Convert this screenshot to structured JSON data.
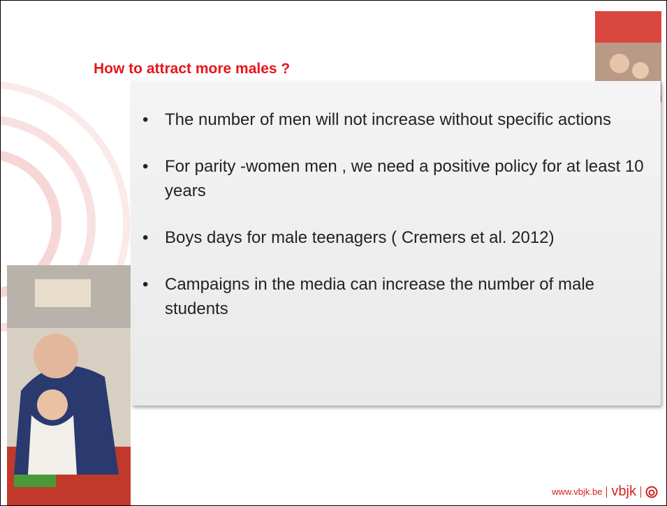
{
  "header": {
    "title": "How to attract more males ?"
  },
  "bullets": [
    "The number of men will not increase without specific actions",
    "For parity -women men , we need a positive policy for at least 10 years",
    "Boys days for male teenagers ( Cremers et al. 2012)",
    "Campaigns in the media can increase the number of male students"
  ],
  "footer": {
    "url": "www.vbjk.be",
    "brand": "vbjk"
  }
}
